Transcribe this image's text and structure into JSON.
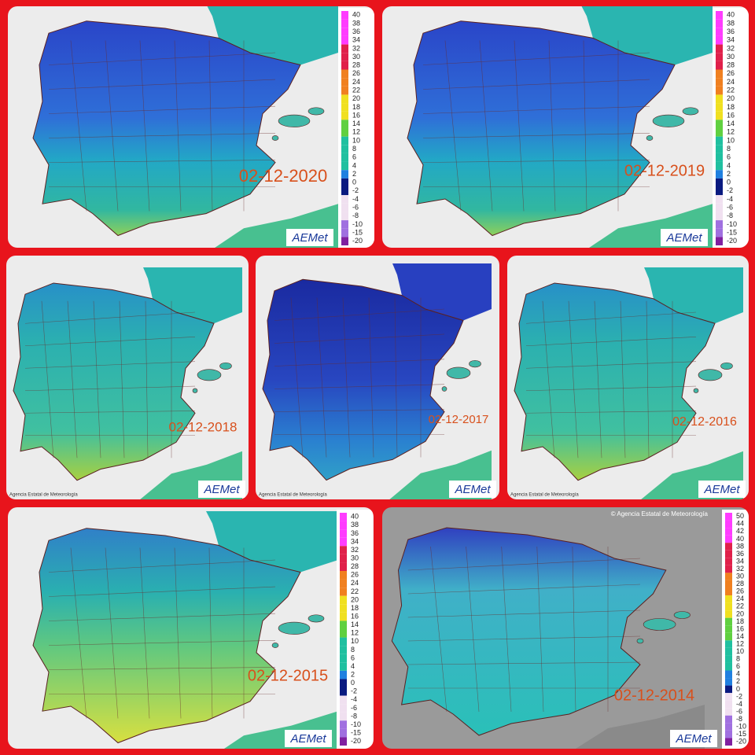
{
  "panels": [
    {
      "date": "02-12-2020",
      "logo": "AEMet"
    },
    {
      "date": "02-12-2019",
      "logo": "AEMet"
    },
    {
      "date": "02-12-2018",
      "logo": "AEMet",
      "credit": "Agencia Estatal de Meteorología"
    },
    {
      "date": "02-12-2017",
      "logo": "AEMet",
      "credit": "Agencia Estatal de Meteorología"
    },
    {
      "date": "02-12-2016",
      "logo": "AEMet",
      "credit": "Agencia Estatal de Meteorología"
    },
    {
      "date": "02-12-2015",
      "logo": "AEMet"
    },
    {
      "date": "02-12-2014",
      "logo": "AEMet",
      "copyright": "© Agencia Estatal de Meteorología"
    }
  ],
  "legend": {
    "labels": [
      40,
      38,
      36,
      34,
      32,
      30,
      28,
      26,
      24,
      22,
      20,
      18,
      16,
      14,
      12,
      10,
      8,
      6,
      4,
      2,
      0,
      -2,
      -4,
      -6,
      -8,
      -10,
      -15,
      -20
    ]
  },
  "legend_2014": {
    "labels": [
      50,
      44,
      42,
      40,
      38,
      36,
      34,
      32,
      30,
      28,
      26,
      24,
      22,
      20,
      18,
      16,
      14,
      12,
      10,
      8,
      6,
      4,
      2,
      0,
      -2,
      -4,
      -6,
      -8,
      -10,
      -15,
      -20
    ]
  }
}
